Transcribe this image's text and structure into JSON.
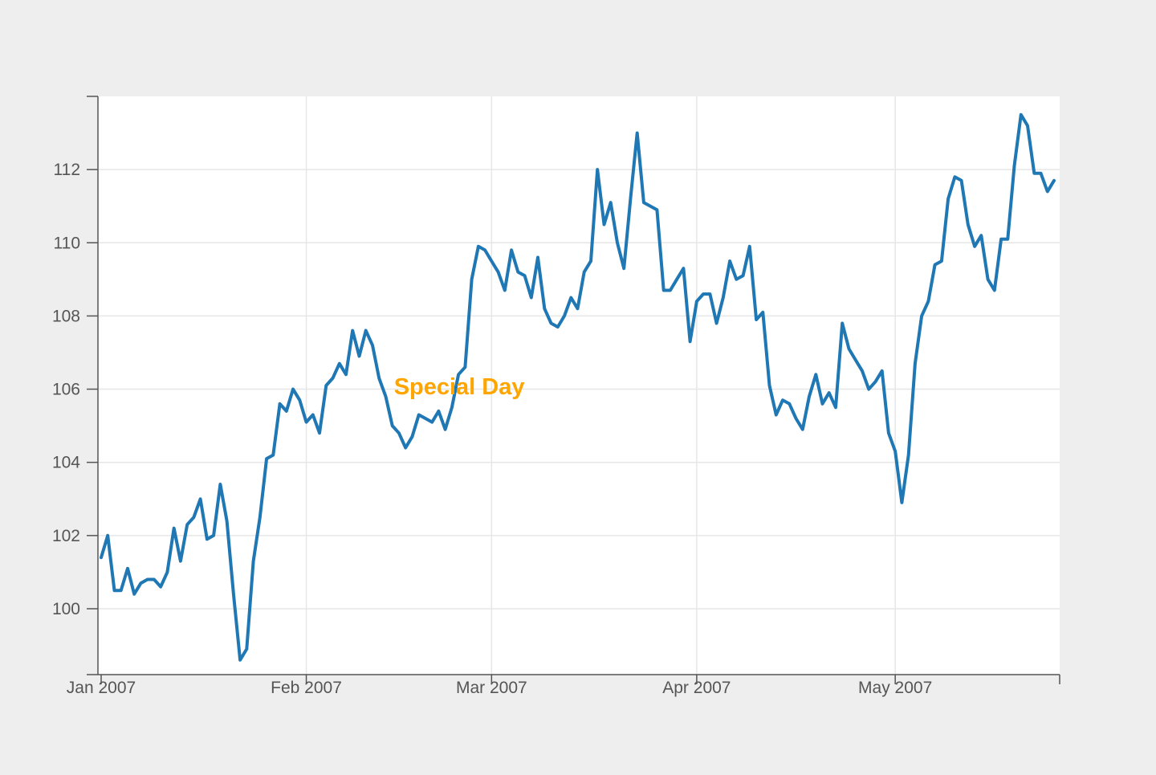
{
  "chart_data": {
    "type": "line",
    "title": "",
    "xlabel": "",
    "ylabel": "",
    "x_start": "2007-01-01",
    "x_end": "2007-05-25",
    "xlim": [
      "2007-01-01",
      "2007-05-25"
    ],
    "ylim": [
      98.2,
      114
    ],
    "grid": true,
    "line_color": "#1f77b4",
    "x_ticks": [
      {
        "date": "2007-01-01",
        "label": "Jan 2007"
      },
      {
        "date": "2007-02-01",
        "label": "Feb 2007"
      },
      {
        "date": "2007-03-01",
        "label": "Mar 2007"
      },
      {
        "date": "2007-04-01",
        "label": "Apr 2007"
      },
      {
        "date": "2007-05-01",
        "label": "May 2007"
      }
    ],
    "y_ticks": [
      100,
      102,
      104,
      106,
      108,
      110,
      112
    ],
    "annotation": {
      "text": "Special Day",
      "date": "2007-02-14",
      "y": 106.1,
      "color": "#ffa500"
    },
    "points": [
      [
        "2007-01-01",
        101.4
      ],
      [
        "2007-01-02",
        102.0
      ],
      [
        "2007-01-03",
        100.5
      ],
      [
        "2007-01-04",
        100.5
      ],
      [
        "2007-01-05",
        101.1
      ],
      [
        "2007-01-06",
        100.4
      ],
      [
        "2007-01-07",
        100.7
      ],
      [
        "2007-01-08",
        100.8
      ],
      [
        "2007-01-09",
        100.8
      ],
      [
        "2007-01-10",
        100.6
      ],
      [
        "2007-01-11",
        101.0
      ],
      [
        "2007-01-12",
        102.2
      ],
      [
        "2007-01-13",
        101.3
      ],
      [
        "2007-01-14",
        102.3
      ],
      [
        "2007-01-15",
        102.5
      ],
      [
        "2007-01-16",
        103.0
      ],
      [
        "2007-01-17",
        101.9
      ],
      [
        "2007-01-18",
        102.0
      ],
      [
        "2007-01-19",
        103.4
      ],
      [
        "2007-01-20",
        102.4
      ],
      [
        "2007-01-21",
        100.4
      ],
      [
        "2007-01-22",
        98.6
      ],
      [
        "2007-01-23",
        98.9
      ],
      [
        "2007-01-24",
        101.3
      ],
      [
        "2007-01-25",
        102.5
      ],
      [
        "2007-01-26",
        104.1
      ],
      [
        "2007-01-27",
        104.2
      ],
      [
        "2007-01-28",
        105.6
      ],
      [
        "2007-01-29",
        105.4
      ],
      [
        "2007-01-30",
        106.0
      ],
      [
        "2007-01-31",
        105.7
      ],
      [
        "2007-02-01",
        105.1
      ],
      [
        "2007-02-02",
        105.3
      ],
      [
        "2007-02-03",
        104.8
      ],
      [
        "2007-02-04",
        106.1
      ],
      [
        "2007-02-05",
        106.3
      ],
      [
        "2007-02-06",
        106.7
      ],
      [
        "2007-02-07",
        106.4
      ],
      [
        "2007-02-08",
        107.6
      ],
      [
        "2007-02-09",
        106.9
      ],
      [
        "2007-02-10",
        107.6
      ],
      [
        "2007-02-11",
        107.2
      ],
      [
        "2007-02-12",
        106.3
      ],
      [
        "2007-02-13",
        105.8
      ],
      [
        "2007-02-14",
        105.0
      ],
      [
        "2007-02-15",
        104.8
      ],
      [
        "2007-02-16",
        104.4
      ],
      [
        "2007-02-17",
        104.7
      ],
      [
        "2007-02-18",
        105.3
      ],
      [
        "2007-02-19",
        105.2
      ],
      [
        "2007-02-20",
        105.1
      ],
      [
        "2007-02-21",
        105.4
      ],
      [
        "2007-02-22",
        104.9
      ],
      [
        "2007-02-23",
        105.5
      ],
      [
        "2007-02-24",
        106.4
      ],
      [
        "2007-02-25",
        106.6
      ],
      [
        "2007-02-26",
        109.0
      ],
      [
        "2007-02-27",
        109.9
      ],
      [
        "2007-02-28",
        109.8
      ],
      [
        "2007-03-01",
        109.5
      ],
      [
        "2007-03-02",
        109.2
      ],
      [
        "2007-03-03",
        108.7
      ],
      [
        "2007-03-04",
        109.8
      ],
      [
        "2007-03-05",
        109.2
      ],
      [
        "2007-03-06",
        109.1
      ],
      [
        "2007-03-07",
        108.5
      ],
      [
        "2007-03-08",
        109.6
      ],
      [
        "2007-03-09",
        108.2
      ],
      [
        "2007-03-10",
        107.8
      ],
      [
        "2007-03-11",
        107.7
      ],
      [
        "2007-03-12",
        108.0
      ],
      [
        "2007-03-13",
        108.5
      ],
      [
        "2007-03-14",
        108.2
      ],
      [
        "2007-03-15",
        109.2
      ],
      [
        "2007-03-16",
        109.5
      ],
      [
        "2007-03-17",
        112.0
      ],
      [
        "2007-03-18",
        110.5
      ],
      [
        "2007-03-19",
        111.1
      ],
      [
        "2007-03-20",
        110.0
      ],
      [
        "2007-03-21",
        109.3
      ],
      [
        "2007-03-22",
        111.2
      ],
      [
        "2007-03-23",
        113.0
      ],
      [
        "2007-03-24",
        111.1
      ],
      [
        "2007-03-25",
        111.0
      ],
      [
        "2007-03-26",
        110.9
      ],
      [
        "2007-03-27",
        108.7
      ],
      [
        "2007-03-28",
        108.7
      ],
      [
        "2007-03-29",
        109.0
      ],
      [
        "2007-03-30",
        109.3
      ],
      [
        "2007-03-31",
        107.3
      ],
      [
        "2007-04-01",
        108.4
      ],
      [
        "2007-04-02",
        108.6
      ],
      [
        "2007-04-03",
        108.6
      ],
      [
        "2007-04-04",
        107.8
      ],
      [
        "2007-04-05",
        108.5
      ],
      [
        "2007-04-06",
        109.5
      ],
      [
        "2007-04-07",
        109.0
      ],
      [
        "2007-04-08",
        109.1
      ],
      [
        "2007-04-09",
        109.9
      ],
      [
        "2007-04-10",
        107.9
      ],
      [
        "2007-04-11",
        108.1
      ],
      [
        "2007-04-12",
        106.1
      ],
      [
        "2007-04-13",
        105.3
      ],
      [
        "2007-04-14",
        105.7
      ],
      [
        "2007-04-15",
        105.6
      ],
      [
        "2007-04-16",
        105.2
      ],
      [
        "2007-04-17",
        104.9
      ],
      [
        "2007-04-18",
        105.8
      ],
      [
        "2007-04-19",
        106.4
      ],
      [
        "2007-04-20",
        105.6
      ],
      [
        "2007-04-21",
        105.9
      ],
      [
        "2007-04-22",
        105.5
      ],
      [
        "2007-04-23",
        107.8
      ],
      [
        "2007-04-24",
        107.1
      ],
      [
        "2007-04-25",
        106.8
      ],
      [
        "2007-04-26",
        106.5
      ],
      [
        "2007-04-27",
        106.0
      ],
      [
        "2007-04-28",
        106.2
      ],
      [
        "2007-04-29",
        106.5
      ],
      [
        "2007-04-30",
        104.8
      ],
      [
        "2007-05-01",
        104.3
      ],
      [
        "2007-05-02",
        102.9
      ],
      [
        "2007-05-03",
        104.2
      ],
      [
        "2007-05-04",
        106.7
      ],
      [
        "2007-05-05",
        108.0
      ],
      [
        "2007-05-06",
        108.4
      ],
      [
        "2007-05-07",
        109.4
      ],
      [
        "2007-05-08",
        109.5
      ],
      [
        "2007-05-09",
        111.2
      ],
      [
        "2007-05-10",
        111.8
      ],
      [
        "2007-05-11",
        111.7
      ],
      [
        "2007-05-12",
        110.5
      ],
      [
        "2007-05-13",
        109.9
      ],
      [
        "2007-05-14",
        110.2
      ],
      [
        "2007-05-15",
        109.0
      ],
      [
        "2007-05-16",
        108.7
      ],
      [
        "2007-05-17",
        110.1
      ],
      [
        "2007-05-18",
        110.1
      ],
      [
        "2007-05-19",
        112.1
      ],
      [
        "2007-05-20",
        113.5
      ],
      [
        "2007-05-21",
        113.2
      ],
      [
        "2007-05-22",
        111.9
      ],
      [
        "2007-05-23",
        111.9
      ],
      [
        "2007-05-24",
        111.4
      ],
      [
        "2007-05-25",
        111.7
      ]
    ]
  }
}
